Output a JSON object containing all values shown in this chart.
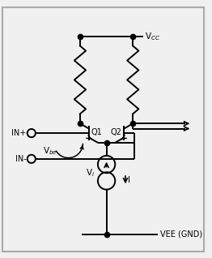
{
  "bg_color": "#f0f0f0",
  "line_color": "black",
  "line_width": 1.4,
  "dot_size": 4.5,
  "figsize": [
    2.62,
    3.18
  ],
  "dpi": 100,
  "vcc_label": "V$_{CC}$",
  "vee_label": "VEE (GND)",
  "q1_label": "Q1",
  "q2_label": "Q2",
  "inp_label": "IN+",
  "inn_label": "IN-",
  "vbe_label": "V$_{be}$",
  "vi_label": "V$_i$",
  "i_label": "I",
  "xlim": [
    0,
    10
  ],
  "ylim": [
    0,
    12
  ]
}
